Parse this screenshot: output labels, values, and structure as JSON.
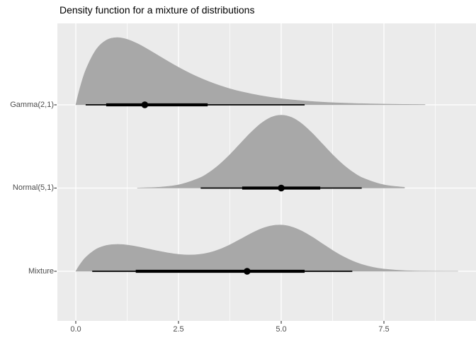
{
  "title": "Density function for a mixture of distributions",
  "colors": {
    "background": "#FFFFFF",
    "panel_bg": "#EBEBEB",
    "grid_major": "#FFFFFF",
    "grid_minor": "#FFFFFF",
    "density_fill": "#A8A8A8",
    "interval": "#000000",
    "axis_text": "#4D4D4D",
    "tick_mark": "#333333",
    "title_text": "#000000"
  },
  "chart_data": {
    "type": "area",
    "subtype": "halfeye-density-ridges",
    "title": "Density function for a mixture of distributions",
    "xlabel": "",
    "ylabel": "",
    "x_range": [
      -0.448,
      9.741
    ],
    "grid": true,
    "legend": "none",
    "x_axis": {
      "major_ticks": [
        0,
        2.5,
        5,
        7.5
      ],
      "tick_labels": [
        "0.0",
        "2.5",
        "5.0",
        "7.5"
      ],
      "minor_ticks": [
        1.25,
        3.75,
        6.25,
        8.75
      ]
    },
    "rows": [
      {
        "label": "Gamma(2,1)",
        "density": {
          "x": [
            0,
            0.1,
            0.25,
            0.5,
            0.75,
            1,
            1.25,
            1.5,
            1.75,
            2,
            2.25,
            2.5,
            2.75,
            3,
            3.25,
            3.5,
            3.75,
            4,
            4.5,
            5,
            5.5,
            6,
            6.5,
            7,
            7.5,
            8,
            8.5
          ],
          "y": [
            0,
            0.0905,
            0.1947,
            0.3033,
            0.3543,
            0.3679,
            0.3581,
            0.3347,
            0.3041,
            0.2707,
            0.2371,
            0.2052,
            0.1758,
            0.1494,
            0.1261,
            0.1057,
            0.0881,
            0.0733,
            0.05,
            0.0337,
            0.0225,
            0.0149,
            0.0098,
            0.0064,
            0.0041,
            0.0027,
            0.0017
          ]
        },
        "point_interval": {
          "median": 1.68,
          "interval66": [
            0.74,
            3.21
          ],
          "interval95": [
            0.24,
            5.57
          ]
        }
      },
      {
        "label": "Normal(5,1)",
        "density": {
          "x": [
            1.5,
            2,
            2.5,
            3,
            3.25,
            3.5,
            3.75,
            4,
            4.25,
            4.5,
            4.75,
            5,
            5.25,
            5.5,
            5.75,
            6,
            6.25,
            6.5,
            6.75,
            7,
            7.5,
            8
          ],
          "y": [
            0.0009,
            0.0044,
            0.0175,
            0.054,
            0.0862,
            0.1295,
            0.1826,
            0.242,
            0.3011,
            0.3521,
            0.3866,
            0.3989,
            0.3866,
            0.3521,
            0.3011,
            0.242,
            0.1826,
            0.1295,
            0.0862,
            0.054,
            0.0175,
            0.0044
          ]
        },
        "point_interval": {
          "median": 5.0,
          "interval66": [
            4.05,
            5.95
          ],
          "interval95": [
            3.04,
            6.96
          ]
        }
      },
      {
        "label": "Mixture",
        "density": {
          "x": [
            0,
            0.1,
            0.25,
            0.5,
            0.75,
            1,
            1.25,
            1.5,
            1.75,
            2,
            2.25,
            2.5,
            2.75,
            3,
            3.25,
            3.5,
            3.75,
            4,
            4.25,
            4.5,
            4.75,
            5,
            5.25,
            5.5,
            5.75,
            6,
            6.25,
            6.5,
            6.75,
            7,
            7.25,
            7.5,
            8,
            8.5,
            9,
            9.3
          ],
          "y": [
            0,
            0.0362,
            0.0779,
            0.1213,
            0.1417,
            0.1472,
            0.1434,
            0.1344,
            0.1229,
            0.111,
            0.1003,
            0.0926,
            0.0893,
            0.0922,
            0.1021,
            0.12,
            0.1448,
            0.1745,
            0.2049,
            0.2313,
            0.2484,
            0.2528,
            0.2431,
            0.2203,
            0.1881,
            0.1512,
            0.1144,
            0.0816,
            0.0549,
            0.035,
            0.0211,
            0.0122,
            0.0038,
            0.0012,
            0.0005,
            0.0003
          ]
        },
        "point_interval": {
          "median": 4.17,
          "interval66": [
            1.46,
            5.57
          ],
          "interval95": [
            0.4,
            6.73
          ]
        }
      }
    ]
  }
}
